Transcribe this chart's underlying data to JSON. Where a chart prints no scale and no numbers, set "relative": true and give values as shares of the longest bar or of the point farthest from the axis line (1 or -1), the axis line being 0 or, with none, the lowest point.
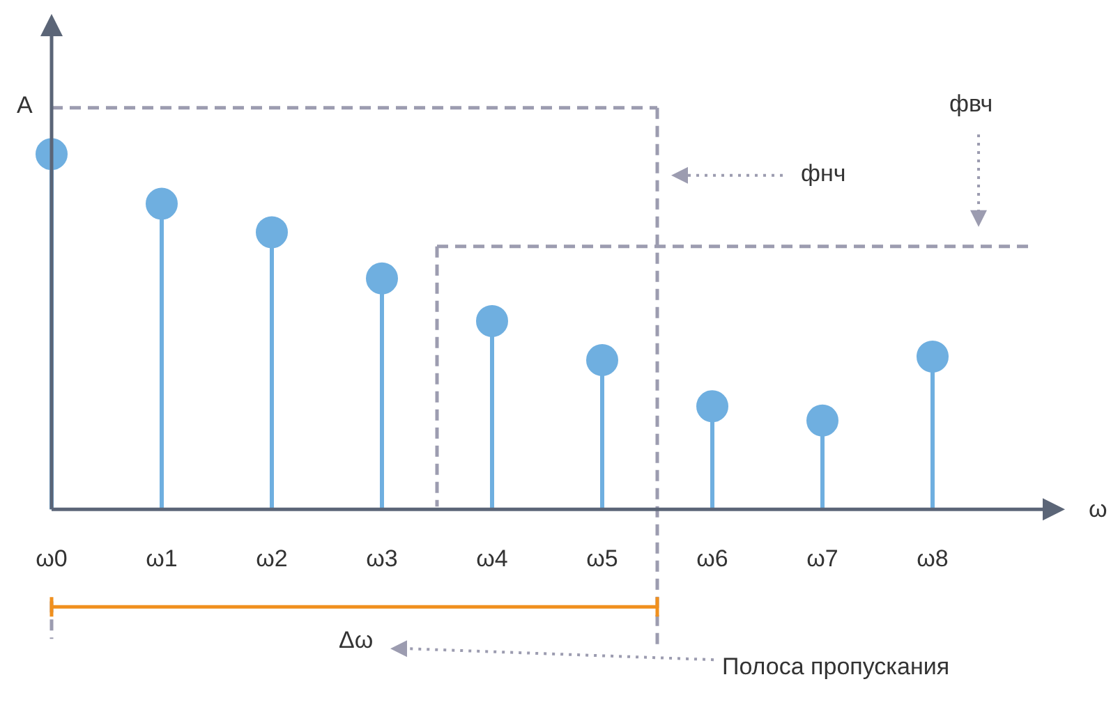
{
  "chart_data": {
    "type": "lollipop",
    "relative": true,
    "xlabel": "ω",
    "ylabel": "A",
    "categories": [
      "ω0",
      "ω1",
      "ω2",
      "ω3",
      "ω4",
      "ω5",
      "ω6",
      "ω7",
      "ω8"
    ],
    "values": [
      1,
      0.86,
      0.78,
      0.65,
      0.53,
      0.42,
      0.29,
      0.25,
      0.43
    ],
    "color": "#6fafe0",
    "annotations": [
      "фнч",
      "фвч",
      "Δω",
      "Полоса пропускания"
    ],
    "ref_lines": [
      {
        "axis": "y",
        "value": 1.13,
        "color": "#9c9cb0",
        "line_style": "dashed"
      },
      {
        "axis": "y",
        "value": 0.74,
        "color": "#9c9cb0",
        "line_style": "dashed"
      }
    ]
  }
}
